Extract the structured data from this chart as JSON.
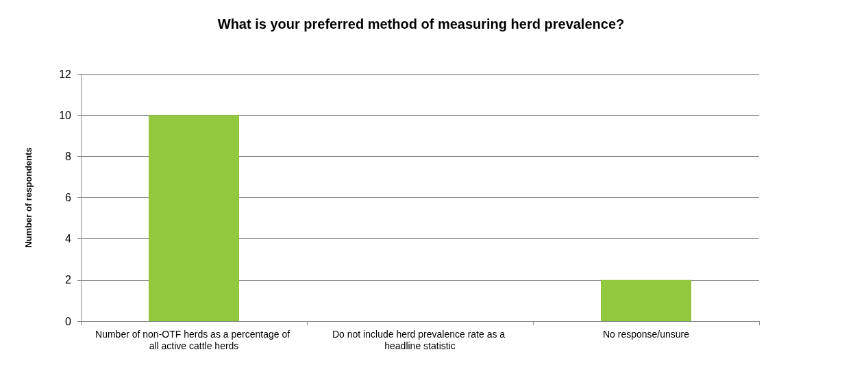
{
  "chart_data": {
    "type": "bar",
    "title": "What is your preferred method of measuring herd prevalence?",
    "ylabel": "Number of respondents",
    "categories": [
      "Number of non-OTF herds as a percentage of all active cattle herds",
      "Do not include herd prevalence rate as a headline statistic",
      "No response/unsure"
    ],
    "values": [
      10,
      0,
      2
    ],
    "color": "#92c83e",
    "ylim": [
      0,
      12
    ],
    "yticks": [
      0,
      2,
      4,
      6,
      8,
      10,
      12
    ],
    "grid": "y"
  }
}
